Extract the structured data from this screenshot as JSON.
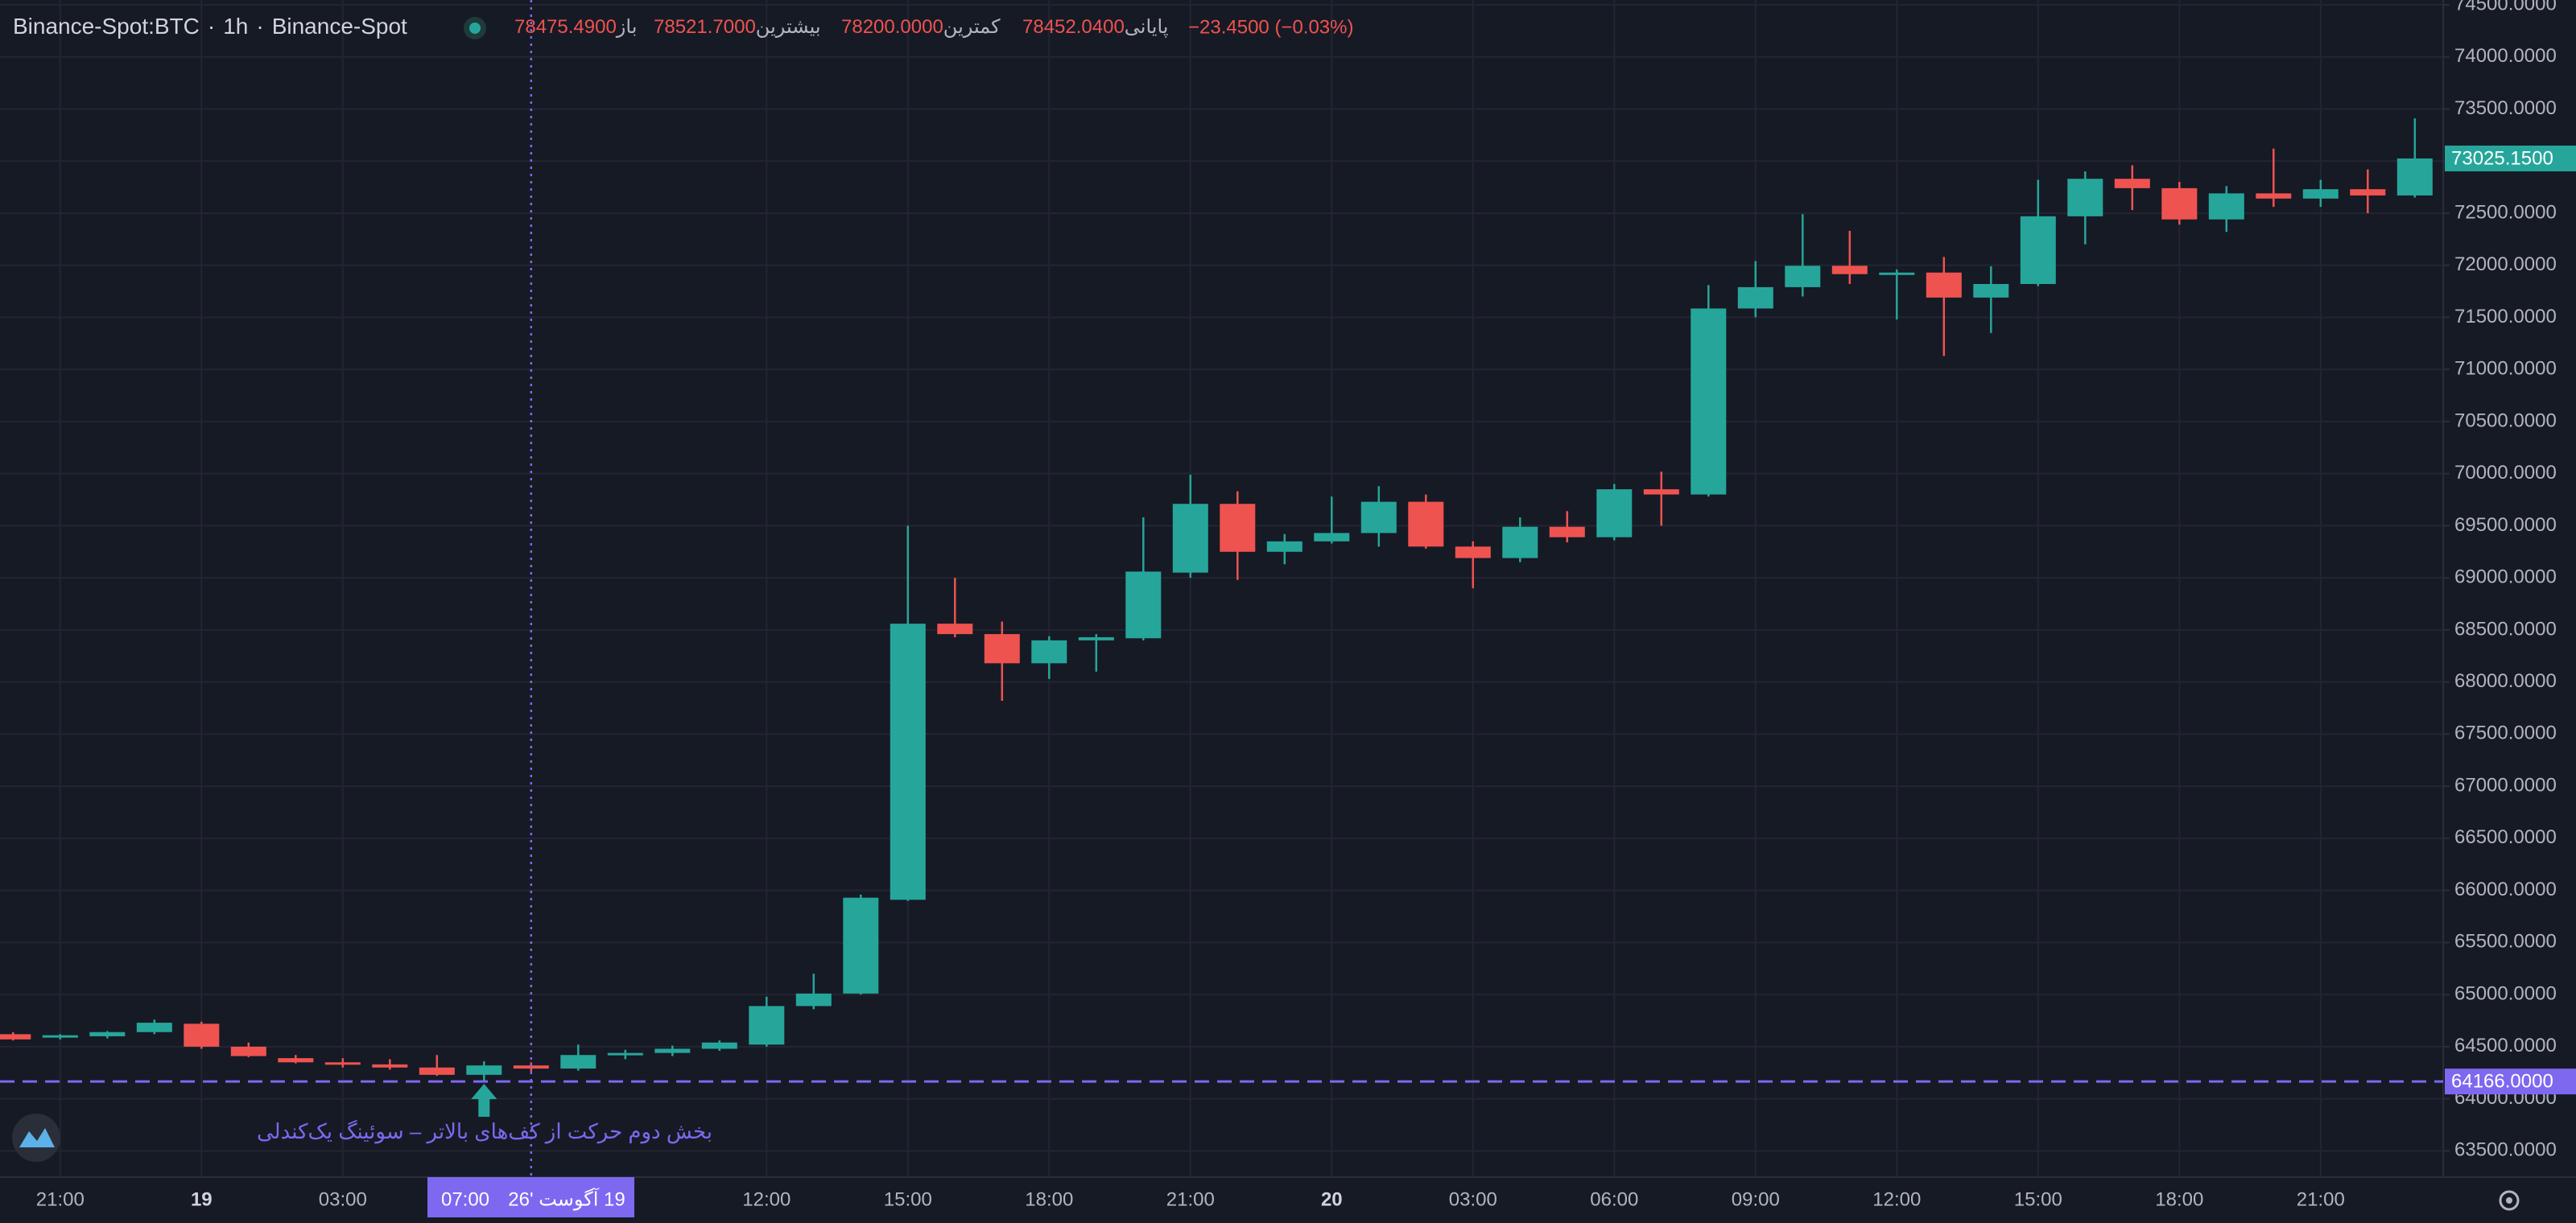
{
  "header": {
    "symbol": "Binance-Spot:BTC",
    "interval": "1h",
    "exchange": "Binance-Spot",
    "ohlc": [
      {
        "label": "باز",
        "value": "78475.4900"
      },
      {
        "label": "بیشترین",
        "value": "78521.7000"
      },
      {
        "label": "کمترین",
        "value": "78200.0000"
      },
      {
        "label": "پایانی",
        "value": "78452.0400"
      }
    ],
    "change": "−23.4500 (−0.03%)"
  },
  "chart_data": {
    "type": "candlestick",
    "categories": [
      null,
      "21:00",
      null,
      null,
      "19",
      null,
      null,
      "03:00",
      null,
      null,
      null,
      null,
      null,
      null,
      null,
      null,
      "12:00",
      null,
      null,
      "15:00",
      null,
      null,
      "18:00",
      null,
      null,
      "21:00",
      null,
      null,
      "20",
      null,
      null,
      "03:00",
      null,
      null,
      "06:00",
      null,
      null,
      "09:00",
      null,
      null,
      "12:00",
      null,
      null,
      "15:00",
      null,
      null,
      "18:00",
      null,
      null,
      "21:00",
      null,
      null
    ],
    "open": [
      64620,
      64590,
      64600,
      64640,
      64720,
      64500,
      64390,
      64350,
      64330,
      64300,
      64230,
      64320,
      64290,
      64420,
      64440,
      64480,
      64520,
      64890,
      65010,
      65910,
      68560,
      68460,
      68180,
      68400,
      68420,
      69050,
      69710,
      69250,
      69350,
      69430,
      69730,
      69300,
      69190,
      69490,
      69390,
      69850,
      69800,
      71585,
      71790,
      71995,
      71915,
      71930,
      71690,
      71820,
      72470,
      72830,
      72740,
      72440,
      72690,
      72640,
      72730,
      72670
    ],
    "high": [
      64640,
      64620,
      64650,
      64760,
      64740,
      64540,
      64420,
      64390,
      64380,
      64420,
      64360,
      64350,
      64520,
      64470,
      64510,
      64560,
      64980,
      65200,
      65960,
      69500,
      69000,
      68580,
      68440,
      68460,
      69580,
      69990,
      69830,
      69420,
      69780,
      69880,
      69800,
      69350,
      69580,
      69640,
      69900,
      70020,
      71810,
      72040,
      72490,
      72330,
      71960,
      72080,
      71990,
      72820,
      72900,
      72960,
      72800,
      72760,
      73120,
      72820,
      72920,
      73410
    ],
    "low": [
      64560,
      64570,
      64580,
      64620,
      64480,
      64400,
      64340,
      64300,
      64280,
      64220,
      64166,
      64260,
      64270,
      64380,
      64410,
      64460,
      64500,
      64860,
      65000,
      65900,
      68430,
      67820,
      68030,
      68100,
      68400,
      69000,
      68980,
      69130,
      69330,
      69300,
      69280,
      68900,
      69150,
      69340,
      69360,
      69500,
      69780,
      71500,
      71700,
      71820,
      71480,
      71130,
      71350,
      71800,
      72200,
      72530,
      72390,
      72320,
      72560,
      72560,
      72500,
      72650
    ],
    "close": [
      64570,
      64610,
      64640,
      64730,
      64500,
      64410,
      64350,
      64330,
      64300,
      64230,
      64320,
      64290,
      64420,
      64440,
      64480,
      64540,
      64890,
      65010,
      65930,
      68560,
      68460,
      68180,
      68400,
      68430,
      69060,
      69710,
      69250,
      69350,
      69430,
      69730,
      69300,
      69190,
      69490,
      69390,
      69850,
      69800,
      71585,
      71790,
      71995,
      71915,
      71930,
      71690,
      71820,
      72470,
      72830,
      72740,
      72440,
      72690,
      72640,
      72730,
      72670,
      73025.15
    ],
    "up_color": "#26a69a",
    "down_color": "#ef5350",
    "ylim": [
      63248,
      74546
    ],
    "yticks": [
      {
        "value": 63500,
        "label": "63500.0000"
      },
      {
        "value": 64000,
        "label": "64000.0000"
      },
      {
        "value": 64500,
        "label": "64500.0000"
      },
      {
        "value": 65000,
        "label": "65000.0000"
      },
      {
        "value": 65500,
        "label": "65500.0000"
      },
      {
        "value": 66000,
        "label": "66000.0000"
      },
      {
        "value": 66500,
        "label": "66500.0000"
      },
      {
        "value": 67000,
        "label": "67000.0000"
      },
      {
        "value": 67500,
        "label": "67500.0000"
      },
      {
        "value": 68000,
        "label": "68000.0000"
      },
      {
        "value": 68500,
        "label": "68500.0000"
      },
      {
        "value": 69000,
        "label": "69000.0000"
      },
      {
        "value": 69500,
        "label": "69500.0000"
      },
      {
        "value": 70000,
        "label": "70000.0000"
      },
      {
        "value": 70500,
        "label": "70500.0000"
      },
      {
        "value": 71000,
        "label": "71000.0000"
      },
      {
        "value": 71500,
        "label": "71500.0000"
      },
      {
        "value": 72000,
        "label": "72000.0000"
      },
      {
        "value": 72500,
        "label": "72500.0000"
      },
      {
        "value": 73000,
        "label": "73000.0000"
      },
      {
        "value": 73500,
        "label": "73500.0000"
      },
      {
        "value": 74000,
        "label": "74000.0000"
      },
      {
        "value": 74500,
        "label": "74500.0000"
      }
    ],
    "grid": true,
    "last_price": {
      "value": 73025.15,
      "label": "73025.1500"
    },
    "hline": {
      "value": 64166,
      "label": "64166.0000",
      "color": "#7e68f0"
    },
    "crosshair": {
      "time": "07:00",
      "date": "19 آگوست '26"
    },
    "annotation": "بخش دوم حرکت از کف‌های بالاتر – سوئینگ یک‌کندلی"
  }
}
